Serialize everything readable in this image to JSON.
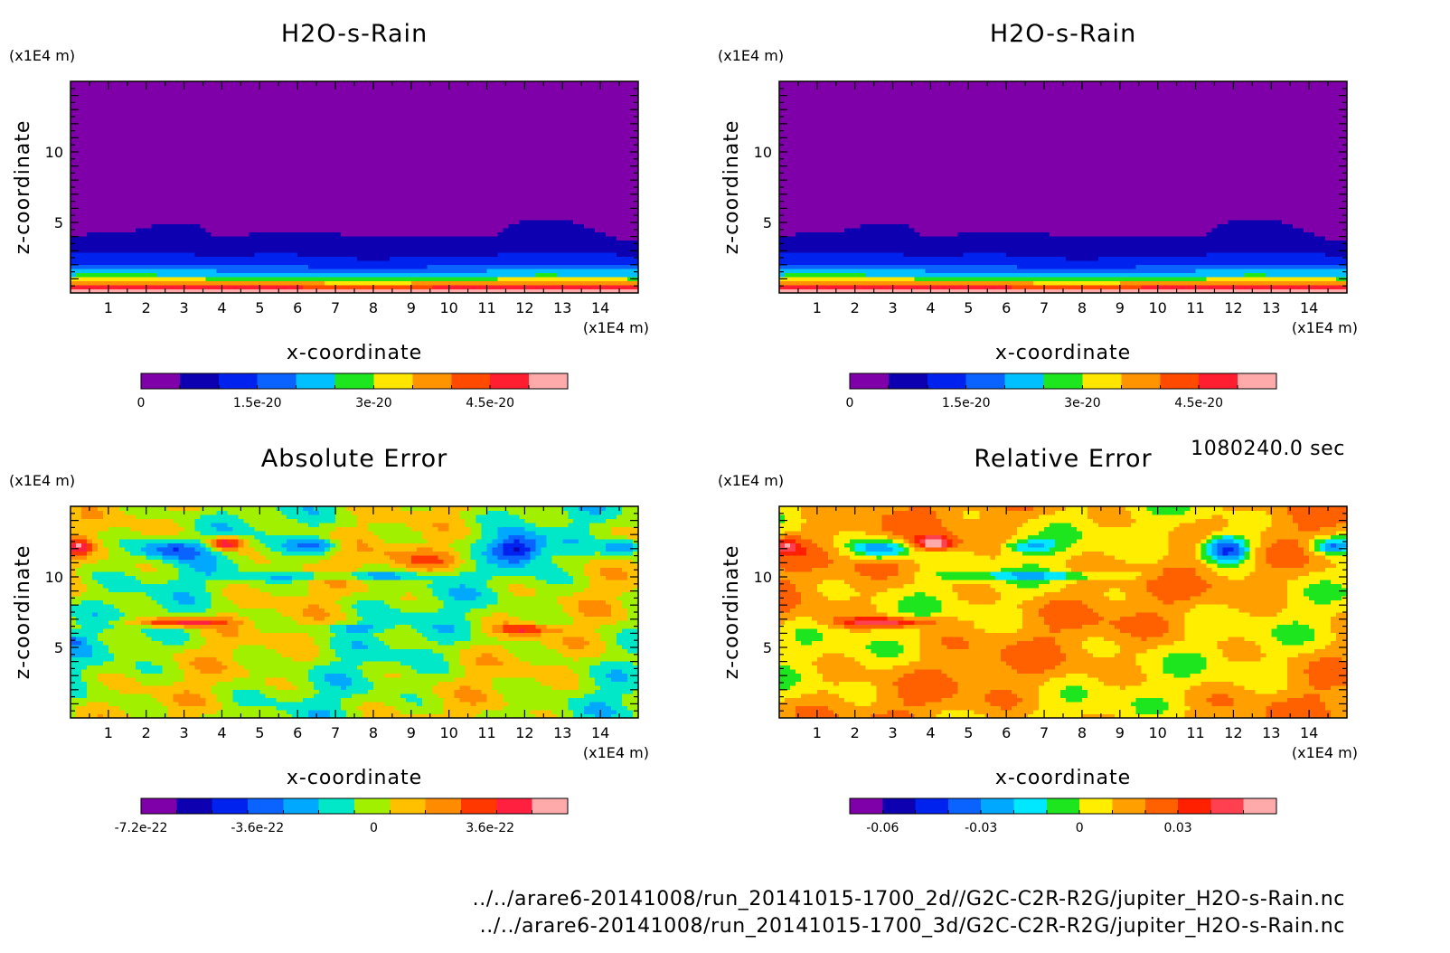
{
  "timestamp": "1080240.0 sec",
  "footer": [
    "../../arare6-20141008/run_20141015-1700_2d//G2C-C2R-R2G/jupiter_H2O-s-Rain.nc",
    "../../arare6-20141008/run_20141015-1700_3d/G2C-C2R-R2G/jupiter_H2O-s-Rain.nc"
  ],
  "chart_data": [
    {
      "type": "heatmap",
      "title": "H2O-s-Rain",
      "xlabel": "x-coordinate",
      "ylabel": "z-coordinate",
      "x_unit": "(x1E4 m)",
      "y_unit": "(x1E4 m)",
      "xlim": [
        0,
        15
      ],
      "ylim": [
        0,
        15
      ],
      "xticks": [
        "1",
        "2",
        "3",
        "4",
        "5",
        "6",
        "7",
        "8",
        "9",
        "10",
        "11",
        "12",
        "13",
        "14"
      ],
      "yticks": [
        "5",
        "10"
      ],
      "colorbar": {
        "colors": [
          "#7f00a8",
          "#0c00b0",
          "#0022ee",
          "#0a62ff",
          "#00c0ff",
          "#1ee61e",
          "#ffe600",
          "#ff9400",
          "#ff4a00",
          "#ff1e30",
          "#ffaaaa"
        ],
        "labels": [
          "0",
          "1.5e-20",
          "3e-20",
          "4.5e-20"
        ],
        "range": [
          0,
          5.5e-20
        ]
      },
      "field": "rain"
    },
    {
      "type": "heatmap",
      "title": "H2O-s-Rain",
      "xlabel": "x-coordinate",
      "ylabel": "z-coordinate",
      "x_unit": "(x1E4 m)",
      "y_unit": "(x1E4 m)",
      "xlim": [
        0,
        15
      ],
      "ylim": [
        0,
        15
      ],
      "xticks": [
        "1",
        "2",
        "3",
        "4",
        "5",
        "6",
        "7",
        "8",
        "9",
        "10",
        "11",
        "12",
        "13",
        "14"
      ],
      "yticks": [
        "5",
        "10"
      ],
      "colorbar": {
        "colors": [
          "#7f00a8",
          "#0c00b0",
          "#0022ee",
          "#0a62ff",
          "#00c0ff",
          "#1ee61e",
          "#ffe600",
          "#ff9400",
          "#ff4a00",
          "#ff1e30",
          "#ffaaaa"
        ],
        "labels": [
          "0",
          "1.5e-20",
          "3e-20",
          "4.5e-20"
        ],
        "range": [
          0,
          5.5e-20
        ]
      },
      "field": "rain"
    },
    {
      "type": "heatmap",
      "title": "Absolute Error",
      "xlabel": "x-coordinate",
      "ylabel": "z-coordinate",
      "x_unit": "(x1E4 m)",
      "y_unit": "(x1E4 m)",
      "xlim": [
        0,
        15
      ],
      "ylim": [
        0,
        15
      ],
      "xticks": [
        "1",
        "2",
        "3",
        "4",
        "5",
        "6",
        "7",
        "8",
        "9",
        "10",
        "11",
        "12",
        "13",
        "14"
      ],
      "yticks": [
        "5",
        "10"
      ],
      "colorbar": {
        "colors": [
          "#7f00a8",
          "#0c00b0",
          "#0022ee",
          "#0a62ff",
          "#00a8ff",
          "#00e8c8",
          "#a0f000",
          "#ffc000",
          "#ff8c00",
          "#ff3800",
          "#ff2040",
          "#ffaaaa"
        ],
        "labels": [
          "-7.2e-22",
          "-3.6e-22",
          "0",
          "3.6e-22"
        ],
        "range": [
          -7.2e-22,
          6e-22
        ]
      },
      "field": "abs_error"
    },
    {
      "type": "heatmap",
      "title": "Relative Error",
      "xlabel": "x-coordinate",
      "ylabel": "z-coordinate",
      "x_unit": "(x1E4 m)",
      "y_unit": "(x1E4 m)",
      "xlim": [
        0,
        15
      ],
      "ylim": [
        0,
        15
      ],
      "xticks": [
        "1",
        "2",
        "3",
        "4",
        "5",
        "6",
        "7",
        "8",
        "9",
        "10",
        "11",
        "12",
        "13",
        "14"
      ],
      "yticks": [
        "5",
        "10"
      ],
      "colorbar": {
        "colors": [
          "#7f00a8",
          "#0c00b0",
          "#0022ee",
          "#0a62ff",
          "#00a8ff",
          "#00e8ff",
          "#1ee61e",
          "#ffee00",
          "#ffa000",
          "#ff6000",
          "#ff2000",
          "#ff4050",
          "#ffaaaa"
        ],
        "labels": [
          "-0.06",
          "-0.03",
          "0",
          "0.03"
        ],
        "range": [
          -0.07,
          0.06
        ]
      },
      "field": "rel_error"
    }
  ]
}
